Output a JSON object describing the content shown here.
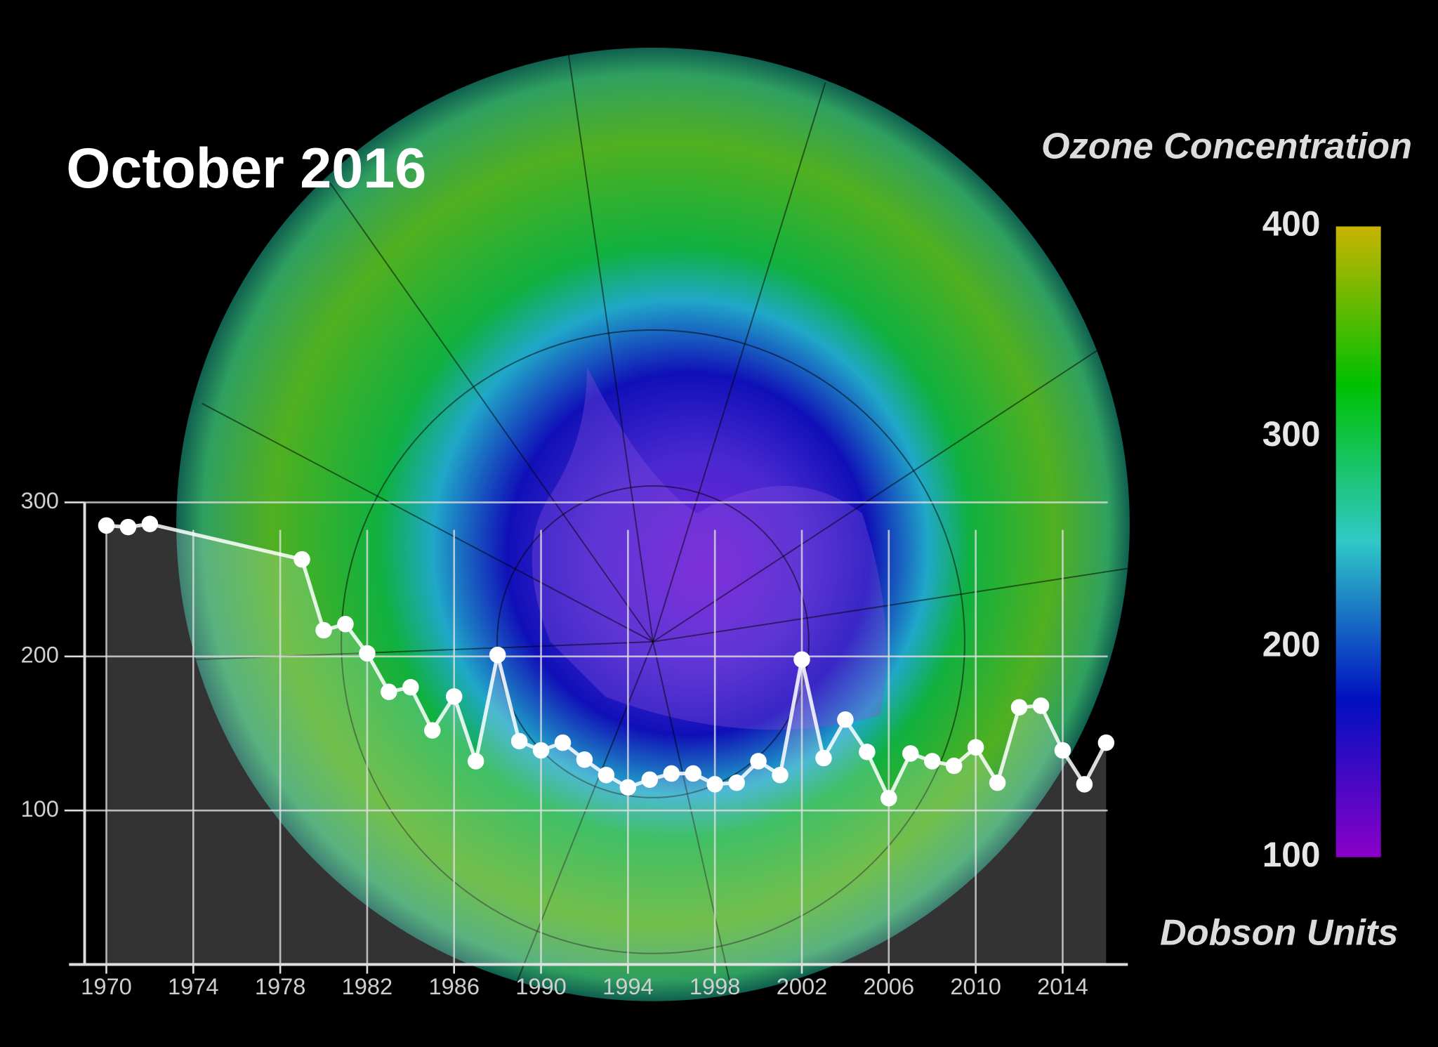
{
  "chart_data": {
    "type": "line",
    "title": "October 2016",
    "x": [
      1970,
      1971,
      1972,
      1979,
      1980,
      1981,
      1982,
      1983,
      1984,
      1985,
      1986,
      1987,
      1988,
      1989,
      1990,
      1991,
      1992,
      1993,
      1994,
      1995,
      1996,
      1997,
      1998,
      1999,
      2000,
      2001,
      2002,
      2003,
      2004,
      2005,
      2006,
      2007,
      2008,
      2009,
      2010,
      2011,
      2012,
      2013,
      2014,
      2015,
      2016
    ],
    "values": [
      285,
      284,
      286,
      263,
      217,
      221,
      202,
      177,
      180,
      152,
      174,
      132,
      201,
      145,
      139,
      144,
      133,
      123,
      115,
      120,
      124,
      124,
      117,
      118,
      132,
      123,
      198,
      134,
      159,
      138,
      108,
      137,
      132,
      129,
      141,
      118,
      167,
      168,
      139,
      117,
      144
    ],
    "color": "#ffffff",
    "xlim": [
      1969,
      2017
    ],
    "xticks": [
      1970,
      1974,
      1978,
      1982,
      1986,
      1990,
      1994,
      1998,
      2002,
      2006,
      2010,
      2014
    ],
    "ylim": [
      0,
      300
    ],
    "yticks": [
      100,
      200,
      300
    ],
    "grid": true,
    "colorbar": {
      "title": "Ozone Concentration",
      "unit": "Dobson Units",
      "lim": [
        100,
        400
      ],
      "ticks": [
        100,
        200,
        300,
        400
      ],
      "colors": [
        "#8a00c8",
        "#0010c0",
        "#30c8c8",
        "#00c000",
        "#c8b400"
      ]
    }
  }
}
